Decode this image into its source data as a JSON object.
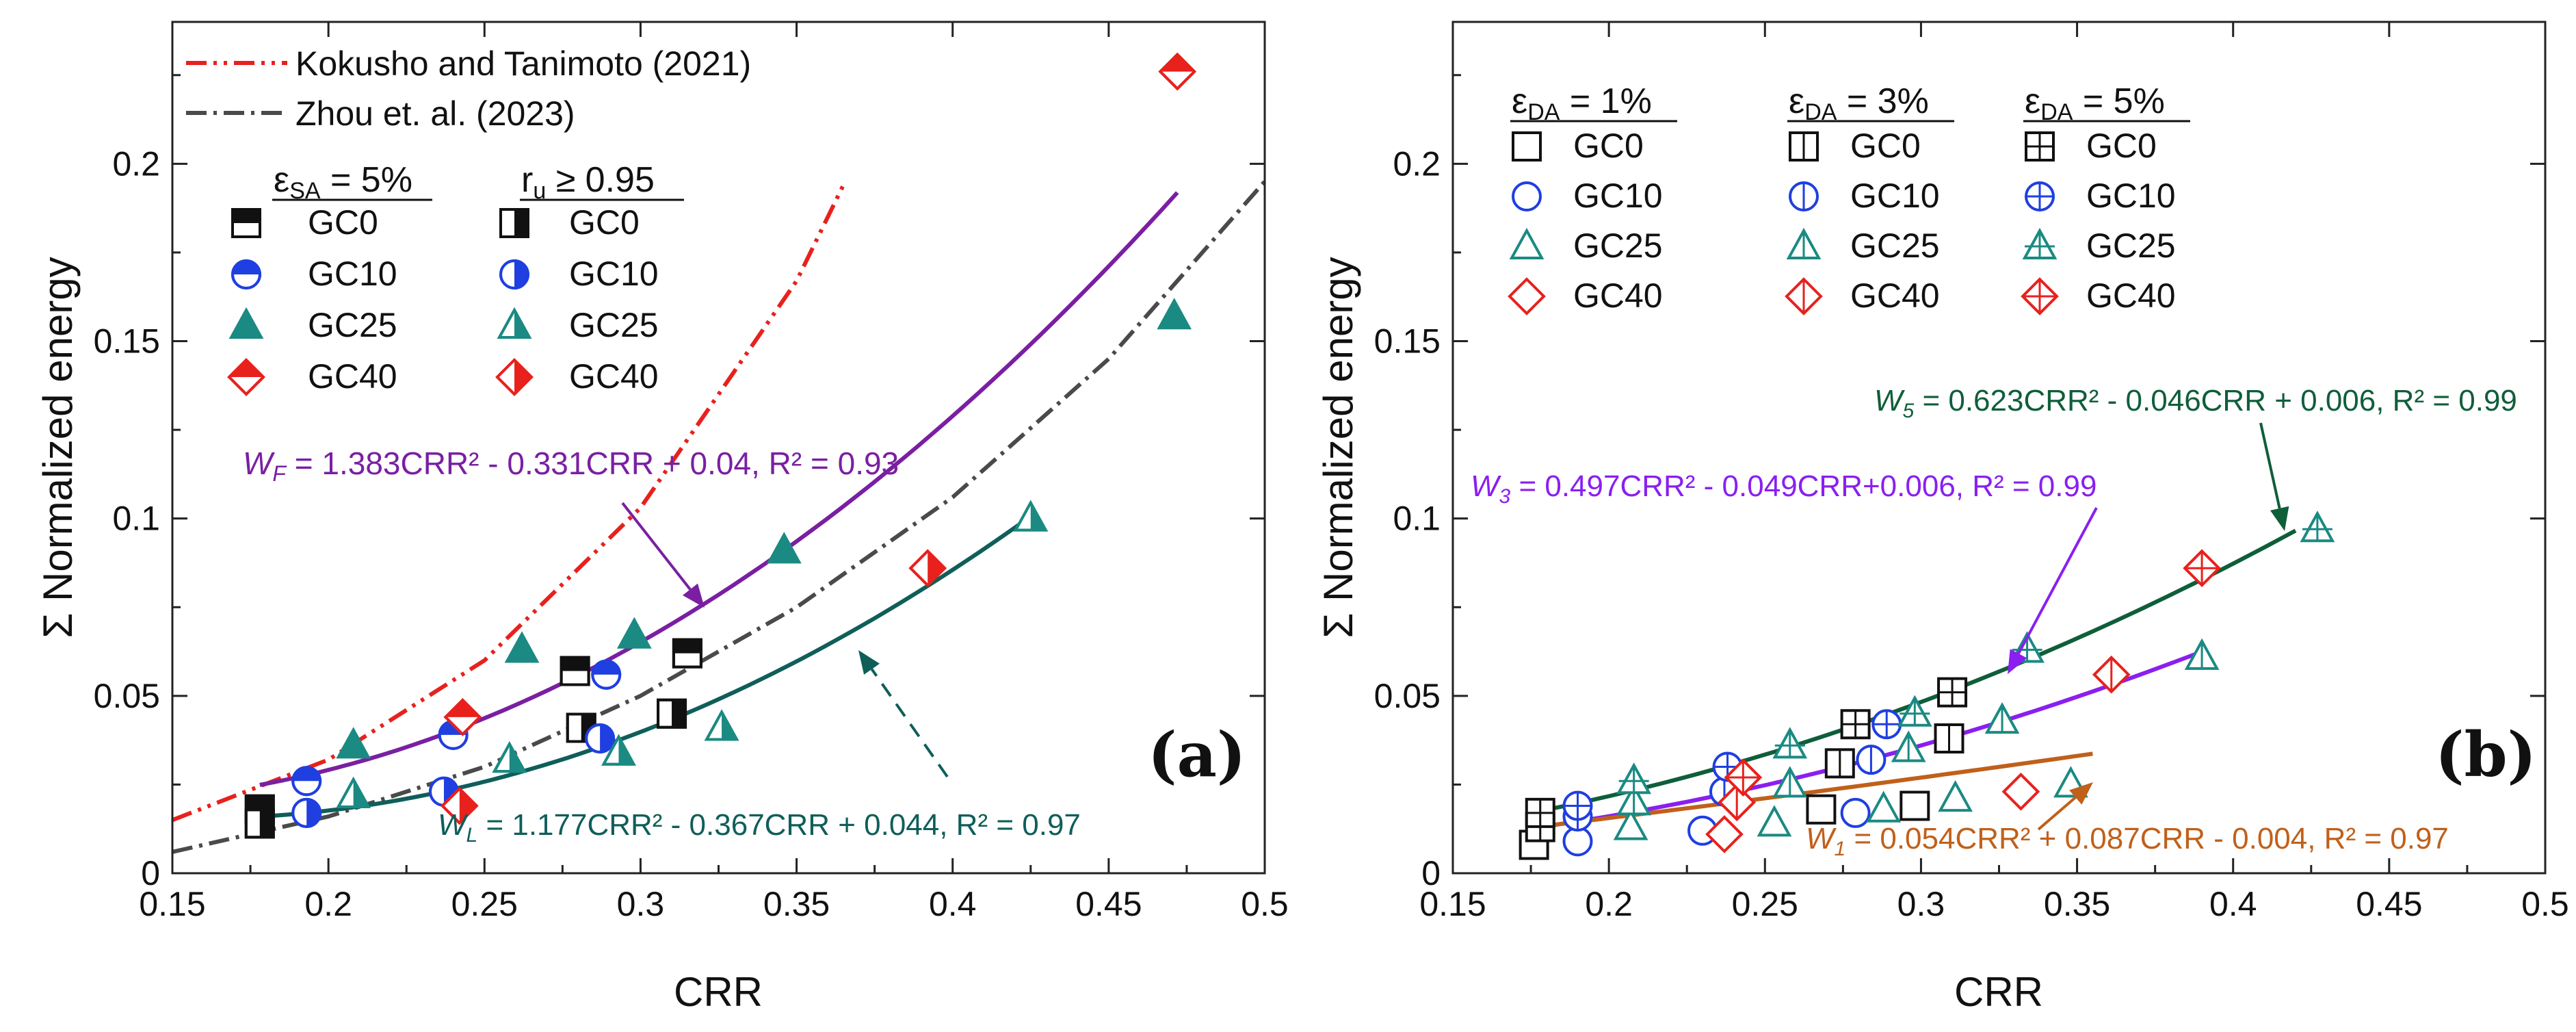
{
  "chart_data": [
    {
      "type": "scatter",
      "panel_label": "(a)",
      "xlabel": "CRR",
      "ylabel": "Σ Normalized energy",
      "xlim": [
        0.15,
        0.5
      ],
      "ylim": [
        0,
        0.24
      ],
      "xticks": [
        "0.15",
        "0.2",
        "0.25",
        "0.3",
        "0.35",
        "0.4",
        "0.45",
        "0.5"
      ],
      "yticks": [
        "0",
        "0.05",
        "0.1",
        "0.15",
        "0.2"
      ],
      "ref_curves": [
        {
          "name": "Kokusho and Tanimoto (2021)",
          "color": "#e8211d",
          "style": "dash-dot-dot",
          "x": [
            0.15,
            0.2,
            0.25,
            0.3,
            0.35,
            0.365
          ],
          "y": [
            0.015,
            0.032,
            0.06,
            0.103,
            0.167,
            0.194
          ]
        },
        {
          "name": "Zhou et. al. (2023)",
          "color": "#4a4a4a",
          "style": "dash-dot",
          "x": [
            0.15,
            0.2,
            0.25,
            0.3,
            0.35,
            0.4,
            0.45,
            0.5
          ],
          "y": [
            0.006,
            0.016,
            0.03,
            0.05,
            0.075,
            0.106,
            0.145,
            0.195
          ]
        }
      ],
      "legend_headers": {
        "left_sym": "ε",
        "left_sub": "SA",
        "left_rest": " = 5%",
        "right_sym": "r",
        "right_sub": "u",
        "right_rest": " ≥ 0.95"
      },
      "groups": [
        {
          "name": "GC0",
          "color": "#111111",
          "shape": "square"
        },
        {
          "name": "GC10",
          "color": "#1f3fe0",
          "shape": "circle"
        },
        {
          "name": "GC25",
          "color": "#1a8a82",
          "shape": "triangle"
        },
        {
          "name": "GC40",
          "color": "#e8211d",
          "shape": "diamond"
        }
      ],
      "series": [
        {
          "name": "GC0 εSA=5%",
          "group": "GC0",
          "fill": "top",
          "x": [
            0.178,
            0.279,
            0.315
          ],
          "y": [
            0.018,
            0.057,
            0.062
          ]
        },
        {
          "name": "GC10 εSA=5%",
          "group": "GC10",
          "fill": "top",
          "x": [
            0.193,
            0.24,
            0.289
          ],
          "y": [
            0.026,
            0.039,
            0.056
          ]
        },
        {
          "name": "GC25 εSA=5%",
          "group": "GC25",
          "fill": "full",
          "x": [
            0.208,
            0.262,
            0.298,
            0.346,
            0.471
          ],
          "y": [
            0.036,
            0.063,
            0.067,
            0.091,
            0.157
          ]
        },
        {
          "name": "GC40 εSA=5%",
          "group": "GC40",
          "fill": "top",
          "x": [
            0.243,
            0.472
          ],
          "y": [
            0.044,
            0.226
          ]
        },
        {
          "name": "GC0 ru≥0.95",
          "group": "GC0",
          "fill": "right",
          "x": [
            0.178,
            0.281,
            0.31
          ],
          "y": [
            0.014,
            0.041,
            0.045
          ]
        },
        {
          "name": "GC10 ru≥0.95",
          "group": "GC10",
          "fill": "right",
          "x": [
            0.193,
            0.237,
            0.287
          ],
          "y": [
            0.017,
            0.023,
            0.038
          ]
        },
        {
          "name": "GC25 ru≥0.95",
          "group": "GC25",
          "fill": "right",
          "x": [
            0.208,
            0.258,
            0.293,
            0.326,
            0.425
          ],
          "y": [
            0.022,
            0.032,
            0.034,
            0.041,
            0.1
          ]
        },
        {
          "name": "GC40 ru≥0.95",
          "group": "GC40",
          "fill": "right",
          "x": [
            0.242,
            0.392
          ],
          "y": [
            0.019,
            0.086
          ]
        }
      ],
      "fits": [
        {
          "name": "W_F",
          "a": 1.383,
          "b": -0.331,
          "c": 0.04,
          "xrange": [
            0.178,
            0.472
          ],
          "color": "#7a1fa2",
          "label": {
            "var": "W",
            "sub": "F",
            "text": " = 1.383CRR² - 0.331CRR + 0.04, R² = 0.93"
          }
        },
        {
          "name": "W_L",
          "a": 1.177,
          "b": -0.367,
          "c": 0.044,
          "xrange": [
            0.178,
            0.425
          ],
          "color": "#0f5e5a",
          "label": {
            "var": "W",
            "sub": "L",
            "text": " = 1.177CRR² - 0.367CRR + 0.044, R² = 0.97"
          }
        }
      ]
    },
    {
      "type": "scatter",
      "panel_label": "(b)",
      "xlabel": "CRR",
      "ylabel": "Σ Normalized energy",
      "xlim": [
        0.15,
        0.5
      ],
      "ylim": [
        0,
        0.24
      ],
      "xticks": [
        "0.15",
        "0.2",
        "0.25",
        "0.3",
        "0.35",
        "0.4",
        "0.45",
        "0.5"
      ],
      "yticks": [
        "0",
        "0.05",
        "0.1",
        "0.15",
        "0.2"
      ],
      "legend_headers": [
        {
          "sym": "ε",
          "sub": "DA",
          "rest": " = 1%"
        },
        {
          "sym": "ε",
          "sub": "DA",
          "rest": " = 3%"
        },
        {
          "sym": "ε",
          "sub": "DA",
          "rest": " = 5%"
        }
      ],
      "groups": [
        {
          "name": "GC0",
          "color": "#111111",
          "shape": "square"
        },
        {
          "name": "GC10",
          "color": "#1f3fe0",
          "shape": "circle"
        },
        {
          "name": "GC25",
          "color": "#1a8a82",
          "shape": "triangle"
        },
        {
          "name": "GC40",
          "color": "#e8211d",
          "shape": "diamond"
        }
      ],
      "series": [
        {
          "name": "GC0 εDA=1%",
          "group": "GC0",
          "mark": "plain",
          "x": [
            0.176,
            0.268,
            0.298
          ],
          "y": [
            0.008,
            0.018,
            0.019
          ]
        },
        {
          "name": "GC10 εDA=1%",
          "group": "GC10",
          "mark": "plain",
          "x": [
            0.19,
            0.23,
            0.279
          ],
          "y": [
            0.009,
            0.012,
            0.017
          ]
        },
        {
          "name": "GC25 εDA=1%",
          "group": "GC25",
          "mark": "plain",
          "x": [
            0.207,
            0.253,
            0.288,
            0.311,
            0.348
          ],
          "y": [
            0.013,
            0.014,
            0.018,
            0.021,
            0.025
          ]
        },
        {
          "name": "GC40 εDA=1%",
          "group": "GC40",
          "mark": "plain",
          "x": [
            0.237,
            0.332
          ],
          "y": [
            0.011,
            0.023
          ]
        },
        {
          "name": "GC0 εDA=3%",
          "group": "GC0",
          "mark": "vline",
          "x": [
            0.178,
            0.274,
            0.309
          ],
          "y": [
            0.013,
            0.031,
            0.038
          ]
        },
        {
          "name": "GC10 εDA=3%",
          "group": "GC10",
          "mark": "vline",
          "x": [
            0.19,
            0.237,
            0.284
          ],
          "y": [
            0.016,
            0.023,
            0.032
          ]
        },
        {
          "name": "GC25 εDA=3%",
          "group": "GC25",
          "mark": "vline",
          "x": [
            0.208,
            0.258,
            0.296,
            0.326,
            0.39
          ],
          "y": [
            0.02,
            0.025,
            0.035,
            0.043,
            0.061
          ]
        },
        {
          "name": "GC40 εDA=3%",
          "group": "GC40",
          "mark": "vline",
          "x": [
            0.241,
            0.361
          ],
          "y": [
            0.02,
            0.056
          ]
        },
        {
          "name": "GC0 εDA=5%",
          "group": "GC0",
          "mark": "cross",
          "x": [
            0.178,
            0.279,
            0.31
          ],
          "y": [
            0.017,
            0.042,
            0.051
          ]
        },
        {
          "name": "GC10 εDA=5%",
          "group": "GC10",
          "mark": "cross",
          "x": [
            0.19,
            0.238,
            0.289
          ],
          "y": [
            0.019,
            0.03,
            0.042
          ]
        },
        {
          "name": "GC25 εDA=5%",
          "group": "GC25",
          "mark": "cross",
          "x": [
            0.208,
            0.258,
            0.298,
            0.334,
            0.427
          ],
          "y": [
            0.026,
            0.036,
            0.045,
            0.063,
            0.097
          ]
        },
        {
          "name": "GC40 εDA=5%",
          "group": "GC40",
          "mark": "cross",
          "x": [
            0.243,
            0.39
          ],
          "y": [
            0.027,
            0.086
          ]
        }
      ],
      "fits": [
        {
          "name": "W_5",
          "a": 0.623,
          "b": -0.046,
          "c": 0.006,
          "xrange": [
            0.176,
            0.42
          ],
          "color": "#0f5e3a",
          "label": {
            "var": "W",
            "sub": "5",
            "text": " = 0.623CRR² - 0.046CRR + 0.006, R² = 0.99"
          }
        },
        {
          "name": "W_3",
          "a": 0.497,
          "b": -0.049,
          "c": 0.006,
          "xrange": [
            0.176,
            0.39
          ],
          "color": "#8a1ff0",
          "label": {
            "var": "W",
            "sub": "3",
            "text": " = 0.497CRR² - 0.049CRR+0.006, R² = 0.99"
          }
        },
        {
          "name": "W_1",
          "a": 0.054,
          "b": 0.087,
          "c": -0.004,
          "xrange": [
            0.176,
            0.355
          ],
          "color": "#c0601a",
          "label": {
            "var": "W",
            "sub": "1",
            "text": " = 0.054CRR² + 0.087CRR - 0.004, R² = 0.97"
          }
        }
      ]
    }
  ]
}
